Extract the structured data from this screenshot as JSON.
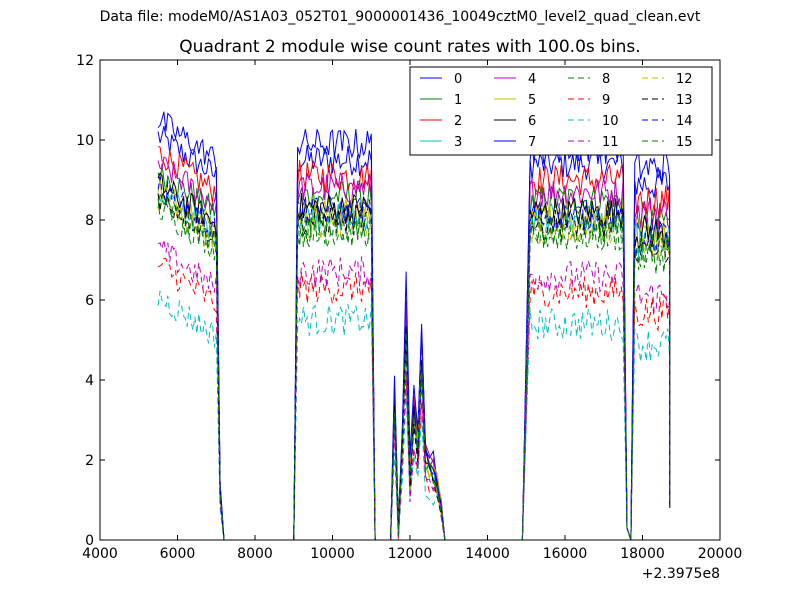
{
  "suptitle": "Data file: modeM0/AS1A03_052T01_9000001436_10049cztM0_level2_quad_clean.evt",
  "chart_data": {
    "type": "line",
    "title": "Quadrant 2 module wise count rates with 100.0s bins.",
    "xlabel": "",
    "ylabel": "",
    "x_offset_label": "+2.3975e8",
    "xlim": [
      4000,
      20000
    ],
    "ylim": [
      0,
      12
    ],
    "xticks": [
      4000,
      6000,
      8000,
      10000,
      12000,
      14000,
      16000,
      18000,
      20000
    ],
    "yticks": [
      0,
      2,
      4,
      6,
      8,
      10,
      12
    ],
    "grid": false,
    "legend_position": "top-right",
    "legend_columns": 4,
    "series": [
      {
        "name": "0",
        "color": "#0000ff",
        "style": "solid"
      },
      {
        "name": "1",
        "color": "#008000",
        "style": "solid"
      },
      {
        "name": "2",
        "color": "#ff0000",
        "style": "solid"
      },
      {
        "name": "3",
        "color": "#00bfbf",
        "style": "solid"
      },
      {
        "name": "4",
        "color": "#bf00bf",
        "style": "solid"
      },
      {
        "name": "5",
        "color": "#bfbf00",
        "style": "solid"
      },
      {
        "name": "6",
        "color": "#000000",
        "style": "solid"
      },
      {
        "name": "7",
        "color": "#0000ff",
        "style": "solid"
      },
      {
        "name": "8",
        "color": "#008000",
        "style": "dashed"
      },
      {
        "name": "9",
        "color": "#ff0000",
        "style": "dashed"
      },
      {
        "name": "10",
        "color": "#00bfbf",
        "style": "dashed"
      },
      {
        "name": "11",
        "color": "#bf00bf",
        "style": "dashed"
      },
      {
        "name": "12",
        "color": "#bfbf00",
        "style": "dashed"
      },
      {
        "name": "13",
        "color": "#000000",
        "style": "dashed"
      },
      {
        "name": "14",
        "color": "#0000ff",
        "style": "dashed"
      },
      {
        "name": "15",
        "color": "#008000",
        "style": "dashed"
      }
    ],
    "series_levels": [
      9.2,
      8.3,
      8.8,
      7.8,
      8.5,
      7.9,
      8.0,
      9.6,
      7.4,
      6.0,
      5.2,
      6.4,
      7.6,
      7.7,
      7.9,
      7.5
    ],
    "segments": [
      {
        "x_start": 5500,
        "x_end": 7000,
        "drop_to_zero_at": 7200
      },
      {
        "x_start": 9100,
        "x_end": 11000,
        "rise_from_zero_at": 9000,
        "drop_to_zero_at": 11100
      },
      {
        "x_start": 15100,
        "x_end": 17500,
        "rise_from_zero_at": 14900,
        "drop_to_zero_at": 17600
      },
      {
        "x_start": 17800,
        "x_end": 18700,
        "rise_from_zero_at": 17700
      }
    ],
    "spikes_segment": {
      "x": [
        11500,
        11600,
        11700,
        11800,
        11900,
        12000,
        12100,
        12200,
        12300,
        12400,
        12500,
        12600,
        12700,
        12800,
        12900
      ],
      "values": [
        0.0,
        3.6,
        0.3,
        2.5,
        5.7,
        1.6,
        3.3,
        2.4,
        4.9,
        2.2,
        1.9,
        1.8,
        1.5,
        0.8,
        0.0
      ]
    }
  }
}
